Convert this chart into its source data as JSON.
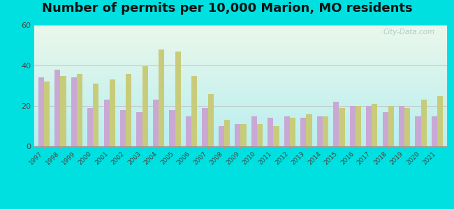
{
  "title": "Number of permits per 10,000 Marion, MO residents",
  "years": [
    1997,
    1998,
    1999,
    2000,
    2001,
    2002,
    2003,
    2004,
    2005,
    2006,
    2007,
    2008,
    2009,
    2010,
    2011,
    2012,
    2013,
    2014,
    2015,
    2016,
    2017,
    2018,
    2019,
    2020,
    2021
  ],
  "marion_county": [
    34,
    38,
    34,
    19,
    23,
    18,
    17,
    23,
    18,
    15,
    19,
    10,
    11,
    15,
    14,
    15,
    14,
    15,
    22,
    20,
    20,
    17,
    20,
    15,
    15
  ],
  "missouri_avg": [
    32,
    35,
    36,
    31,
    33,
    36,
    40,
    48,
    47,
    35,
    26,
    13,
    11,
    11,
    10,
    14,
    16,
    15,
    19,
    20,
    21,
    20,
    19,
    23,
    25
  ],
  "marion_color": "#c9a8d4",
  "missouri_color": "#c8cc7a",
  "ylim": [
    0,
    60
  ],
  "yticks": [
    0,
    20,
    40,
    60
  ],
  "background_outer": "#00e0e0",
  "bg_bottom": "#b8eef0",
  "bg_top": "#eaf7ea",
  "grid_color": "#bbbbbb",
  "title_fontsize": 13,
  "bar_width": 0.35,
  "legend_marker_color_1": "#e070c0",
  "legend_marker_color_2": "#c8c850"
}
